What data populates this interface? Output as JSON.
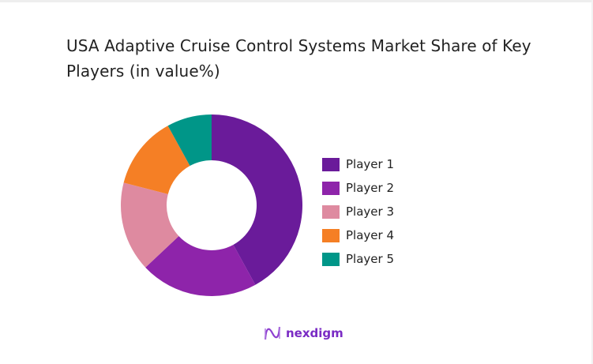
{
  "chart_data": {
    "type": "pie",
    "donut": true,
    "title": "USA Adaptive Cruise Control Systems Market Share of Key Players (in value%)",
    "categories": [
      "Player 1",
      "Player 2",
      "Player 3",
      "Player 4",
      "Player 5"
    ],
    "values": [
      42,
      21,
      16,
      13,
      8
    ],
    "colors": [
      "#6a1b9a",
      "#8e24aa",
      "#de8aa0",
      "#f57f25",
      "#009688"
    ],
    "legend_position": "right"
  },
  "branding": {
    "logo_text": "nexdigm"
  }
}
